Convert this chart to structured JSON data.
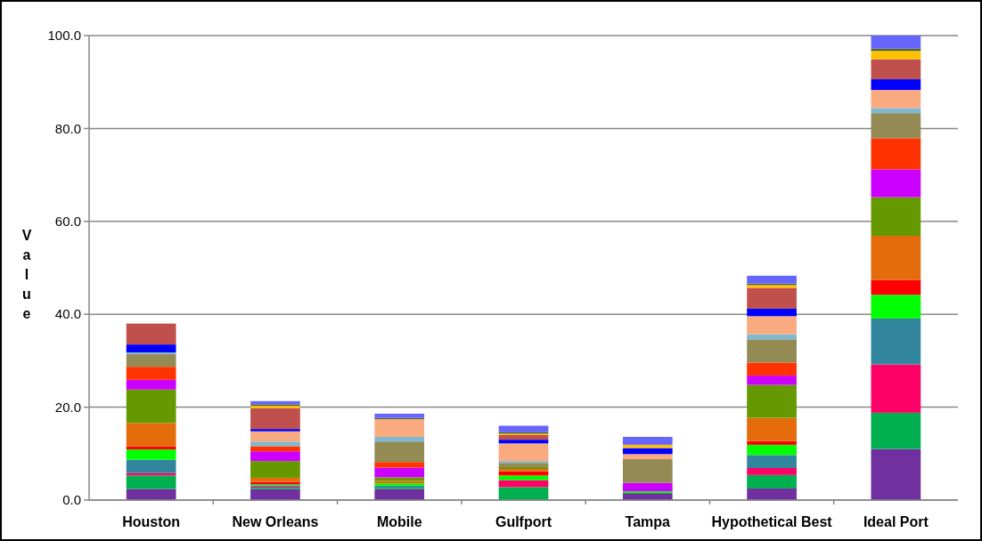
{
  "chart_data": {
    "type": "bar",
    "stacked": true,
    "ylabel": "Value",
    "grid": "y",
    "categories": [
      "Houston",
      "New Orleans",
      "Mobile",
      "Gulfport",
      "Tampa",
      "Hypothetical Best",
      "Ideal Port"
    ],
    "ylim": [
      0,
      100
    ],
    "yticks": [
      {
        "value": 0,
        "label": "0.0"
      },
      {
        "value": 20,
        "label": "20.0"
      },
      {
        "value": 40,
        "label": "40.0"
      },
      {
        "value": 60,
        "label": "60.0"
      },
      {
        "value": 80,
        "label": "80.0"
      },
      {
        "value": 100,
        "label": "100.0"
      }
    ],
    "series": [
      {
        "color": "#7030a0",
        "values": [
          2.4,
          2.4,
          2.4,
          0,
          1.5,
          2.5,
          11.0
        ]
      },
      {
        "color": "#00b050",
        "values": [
          2.9,
          0.3,
          0.3,
          2.8,
          0,
          2.9,
          7.8
        ]
      },
      {
        "color": "#ff0066",
        "values": [
          0.5,
          0.2,
          0,
          1.5,
          0,
          1.5,
          10.4
        ]
      },
      {
        "color": "#31859c",
        "values": [
          2.9,
          0.3,
          0.4,
          0,
          0,
          2.8,
          9.9
        ]
      },
      {
        "color": "#00ff00",
        "values": [
          2.2,
          0.2,
          0.5,
          1.0,
          0.4,
          2.2,
          5.1
        ]
      },
      {
        "color": "#ff0000",
        "values": [
          0.7,
          0.5,
          0,
          0.9,
          0,
          0.8,
          3.2
        ]
      },
      {
        "color": "#e46c0a",
        "values": [
          5.0,
          0.9,
          0.5,
          0.5,
          0,
          5.0,
          9.5
        ]
      },
      {
        "color": "#669900",
        "values": [
          7.2,
          3.6,
          0.8,
          0.4,
          0,
          7.1,
          8.3
        ]
      },
      {
        "color": "#cc00ff",
        "values": [
          2.1,
          2.1,
          2.1,
          0,
          1.8,
          2.0,
          6.0
        ]
      },
      {
        "color": "#ff3300",
        "values": [
          2.8,
          1.1,
          1.2,
          0,
          0,
          2.8,
          6.7
        ]
      },
      {
        "color": "#948a54",
        "values": [
          2.7,
          0,
          4.4,
          0.9,
          5.1,
          5.0,
          5.4
        ]
      },
      {
        "color": "#7fb8d0",
        "values": [
          0.4,
          1.0,
          1.0,
          0.4,
          0,
          1.1,
          1.1
        ]
      },
      {
        "color": "#f9ab7f",
        "values": [
          0,
          2.2,
          3.8,
          3.8,
          1.1,
          3.9,
          3.9
        ]
      },
      {
        "color": "#0000ff",
        "values": [
          1.7,
          0.5,
          0,
          0.8,
          1.3,
          1.6,
          2.3
        ]
      },
      {
        "color": "#c0504d",
        "values": [
          4.5,
          4.5,
          0,
          1.0,
          0,
          4.5,
          4.3
        ]
      },
      {
        "color": "#ffc000",
        "values": [
          0,
          0.5,
          0,
          0.3,
          0.7,
          0.6,
          1.8
        ]
      },
      {
        "color": "#4f6228",
        "values": [
          0,
          0.3,
          0.3,
          0.3,
          0,
          0.3,
          0.5
        ]
      },
      {
        "color": "#6666ff",
        "values": [
          0,
          0.7,
          0.9,
          1.4,
          1.7,
          1.7,
          2.8
        ]
      }
    ]
  }
}
